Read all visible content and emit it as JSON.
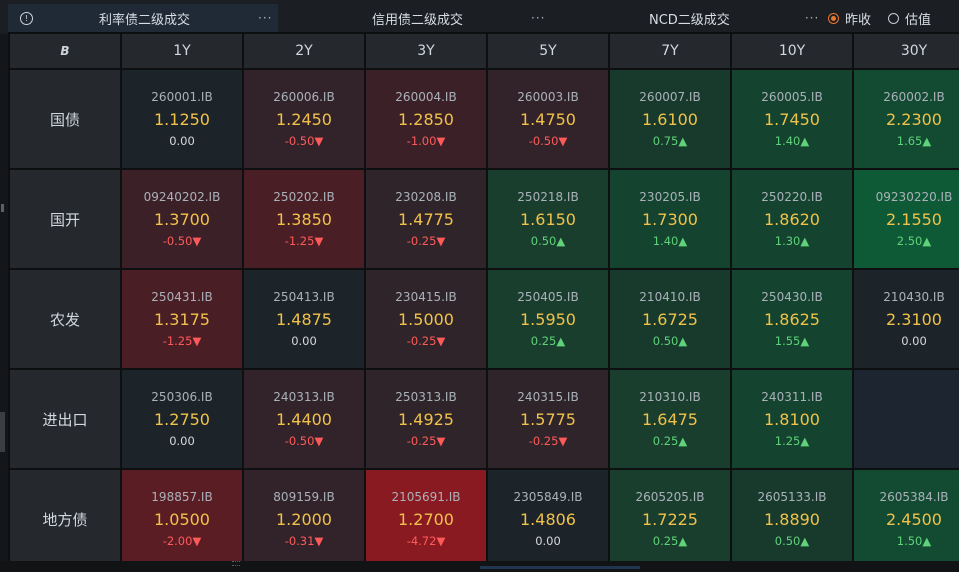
{
  "tabs": [
    {
      "label": "利率债二级成交",
      "menu": "···"
    },
    {
      "label": "信用债二级成交",
      "menu": "···"
    },
    {
      "label": "NCD二级成交",
      "menu": "···"
    }
  ],
  "radios": [
    {
      "label": "昨收",
      "selected": true
    },
    {
      "label": "估值",
      "selected": false
    }
  ],
  "table": {
    "corner_icon": "B",
    "columns": [
      "1Y",
      "2Y",
      "3Y",
      "5Y",
      "7Y",
      "10Y",
      "30Y"
    ],
    "rows": [
      {
        "label": "国债",
        "cells": [
          {
            "code": "260001.IB",
            "yield": "1.1250",
            "change": "0.00",
            "dir": "flat"
          },
          {
            "code": "260006.IB",
            "yield": "1.2450",
            "change": "-0.50▼",
            "dir": "down"
          },
          {
            "code": "260004.IB",
            "yield": "1.2850",
            "change": "-1.00▼",
            "dir": "down"
          },
          {
            "code": "260003.IB",
            "yield": "1.4750",
            "change": "-0.50▼",
            "dir": "down"
          },
          {
            "code": "260007.IB",
            "yield": "1.6100",
            "change": "0.75▲",
            "dir": "up"
          },
          {
            "code": "260005.IB",
            "yield": "1.7450",
            "change": "1.40▲",
            "dir": "up"
          },
          {
            "code": "260002.IB",
            "yield": "2.2300",
            "change": "1.65▲",
            "dir": "up"
          }
        ]
      },
      {
        "label": "国开",
        "cells": [
          {
            "code": "09240202.IB",
            "yield": "1.3700",
            "change": "-0.50▼",
            "dir": "down"
          },
          {
            "code": "250202.IB",
            "yield": "1.3850",
            "change": "-1.25▼",
            "dir": "down"
          },
          {
            "code": "230208.IB",
            "yield": "1.4775",
            "change": "-0.25▼",
            "dir": "down"
          },
          {
            "code": "250218.IB",
            "yield": "1.6150",
            "change": "0.50▲",
            "dir": "up"
          },
          {
            "code": "230205.IB",
            "yield": "1.7300",
            "change": "1.40▲",
            "dir": "up"
          },
          {
            "code": "250220.IB",
            "yield": "1.8620",
            "change": "1.30▲",
            "dir": "up"
          },
          {
            "code": "09230220.IB",
            "yield": "2.1550",
            "change": "2.50▲",
            "dir": "up"
          }
        ]
      },
      {
        "label": "农发",
        "cells": [
          {
            "code": "250431.IB",
            "yield": "1.3175",
            "change": "-1.25▼",
            "dir": "down"
          },
          {
            "code": "250413.IB",
            "yield": "1.4875",
            "change": "0.00",
            "dir": "flat"
          },
          {
            "code": "230415.IB",
            "yield": "1.5000",
            "change": "-0.25▼",
            "dir": "down"
          },
          {
            "code": "250405.IB",
            "yield": "1.5950",
            "change": "0.25▲",
            "dir": "up"
          },
          {
            "code": "210410.IB",
            "yield": "1.6725",
            "change": "0.50▲",
            "dir": "up"
          },
          {
            "code": "250430.IB",
            "yield": "1.8625",
            "change": "1.55▲",
            "dir": "up"
          },
          {
            "code": "210430.IB",
            "yield": "2.3100",
            "change": "0.00",
            "dir": "flat"
          }
        ]
      },
      {
        "label": "进出口",
        "cells": [
          {
            "code": "250306.IB",
            "yield": "1.2750",
            "change": "0.00",
            "dir": "flat"
          },
          {
            "code": "240313.IB",
            "yield": "1.4400",
            "change": "-0.50▼",
            "dir": "down"
          },
          {
            "code": "250313.IB",
            "yield": "1.4925",
            "change": "-0.25▼",
            "dir": "down"
          },
          {
            "code": "240315.IB",
            "yield": "1.5775",
            "change": "-0.25▼",
            "dir": "down"
          },
          {
            "code": "210310.IB",
            "yield": "1.6475",
            "change": "0.25▲",
            "dir": "up"
          },
          {
            "code": "240311.IB",
            "yield": "1.8100",
            "change": "1.25▲",
            "dir": "up"
          },
          null
        ]
      },
      {
        "label": "地方债",
        "cells": [
          {
            "code": "198857.IB",
            "yield": "1.0500",
            "change": "-2.00▼",
            "dir": "down"
          },
          {
            "code": "809159.IB",
            "yield": "1.2000",
            "change": "-0.31▼",
            "dir": "down"
          },
          {
            "code": "2105691.IB",
            "yield": "1.2700",
            "change": "-4.72▼",
            "dir": "down"
          },
          {
            "code": "2305849.IB",
            "yield": "1.4806",
            "change": "0.00",
            "dir": "flat"
          },
          {
            "code": "2605205.IB",
            "yield": "1.7225",
            "change": "0.25▲",
            "dir": "up"
          },
          {
            "code": "2605133.IB",
            "yield": "1.8890",
            "change": "0.50▲",
            "dir": "up"
          },
          {
            "code": "2605384.IB",
            "yield": "2.4500",
            "change": "1.50▲",
            "dir": "up"
          }
        ]
      }
    ]
  },
  "colors": {
    "yield_text": "#f0c24a",
    "up_text": "#5fd27a",
    "down_text": "#ff5a5a",
    "accent_radio": "#e8762c"
  }
}
